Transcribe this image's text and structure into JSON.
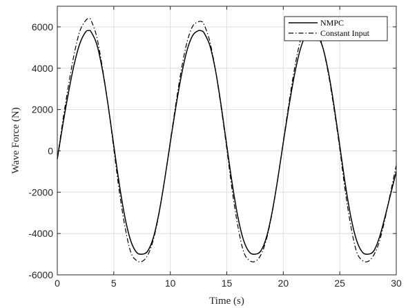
{
  "chart_data": {
    "type": "line",
    "title": "",
    "xlabel": "Time (s)",
    "ylabel": "Wave Force (N)",
    "xlim": [
      0,
      30
    ],
    "ylim": [
      -6000,
      7000
    ],
    "xticks": [
      0,
      5,
      10,
      15,
      20,
      25,
      30
    ],
    "yticks": [
      -6000,
      -4000,
      -2000,
      0,
      2000,
      4000,
      6000
    ],
    "grid": true,
    "legend_position": "top-right",
    "series": [
      {
        "name": "NMPC",
        "style": "solid",
        "color": "#000000",
        "x": [
          0,
          0.5,
          1,
          1.5,
          2,
          2.5,
          2.8,
          3,
          3.5,
          4,
          4.5,
          5,
          5.5,
          6,
          6.5,
          7,
          7.5,
          8,
          8.5,
          9,
          9.5,
          10,
          10.5,
          11,
          11.5,
          12,
          12.5,
          12.8,
          13,
          13.5,
          14,
          14.5,
          15,
          15.5,
          16,
          16.5,
          17,
          17.5,
          18,
          18.5,
          19,
          19.5,
          20,
          20.5,
          21,
          21.5,
          22,
          22.5,
          22.8,
          23,
          23.5,
          24,
          24.5,
          25,
          25.5,
          26,
          26.5,
          27,
          27.5,
          28,
          28.5,
          29,
          29.5,
          30
        ],
        "y": [
          -400,
          1300,
          2850,
          4200,
          5200,
          5750,
          5820,
          5750,
          5150,
          3900,
          2200,
          250,
          -1650,
          -3250,
          -4350,
          -4900,
          -5000,
          -4850,
          -4200,
          -3000,
          -1400,
          400,
          2150,
          3700,
          4900,
          5600,
          5820,
          5800,
          5700,
          5100,
          3900,
          2200,
          250,
          -1650,
          -3250,
          -4350,
          -4900,
          -5000,
          -4850,
          -4200,
          -3000,
          -1400,
          400,
          2150,
          3700,
          4900,
          5600,
          5800,
          5750,
          5650,
          5000,
          3800,
          2150,
          250,
          -1650,
          -3250,
          -4350,
          -4900,
          -5000,
          -4850,
          -4200,
          -3200,
          -2100,
          -1000
        ]
      },
      {
        "name": "Constant Input",
        "style": "dashdot",
        "color": "#000000",
        "x": [
          0,
          0.5,
          1,
          1.5,
          2,
          2.5,
          2.8,
          3,
          3.5,
          4,
          4.5,
          5,
          5.5,
          6,
          6.5,
          7,
          7.5,
          8,
          8.5,
          9,
          9.5,
          10,
          10.5,
          11,
          11.5,
          12,
          12.5,
          12.8,
          13,
          13.5,
          14,
          14.5,
          15,
          15.5,
          16,
          16.5,
          17,
          17.5,
          18,
          18.5,
          19,
          19.5,
          20,
          20.5,
          21,
          21.5,
          22,
          22.5,
          22.8,
          23,
          23.5,
          24,
          24.5,
          25,
          25.5,
          26,
          26.5,
          27,
          27.5,
          28,
          28.5,
          29,
          29.5,
          30
        ],
        "y": [
          -400,
          1500,
          3200,
          4700,
          5800,
          6300,
          6400,
          6300,
          5500,
          4000,
          2200,
          100,
          -2000,
          -3700,
          -4900,
          -5300,
          -5350,
          -5050,
          -4300,
          -3050,
          -1400,
          450,
          2300,
          4000,
          5300,
          6050,
          6250,
          6250,
          6100,
          5300,
          3900,
          2100,
          100,
          -2000,
          -3700,
          -4900,
          -5300,
          -5350,
          -5050,
          -4300,
          -3050,
          -1400,
          450,
          2300,
          4000,
          5300,
          6000,
          6100,
          6000,
          5850,
          5000,
          3700,
          2000,
          100,
          -2000,
          -3700,
          -4900,
          -5300,
          -5350,
          -5050,
          -4400,
          -3300,
          -2000,
          -700
        ]
      }
    ]
  }
}
